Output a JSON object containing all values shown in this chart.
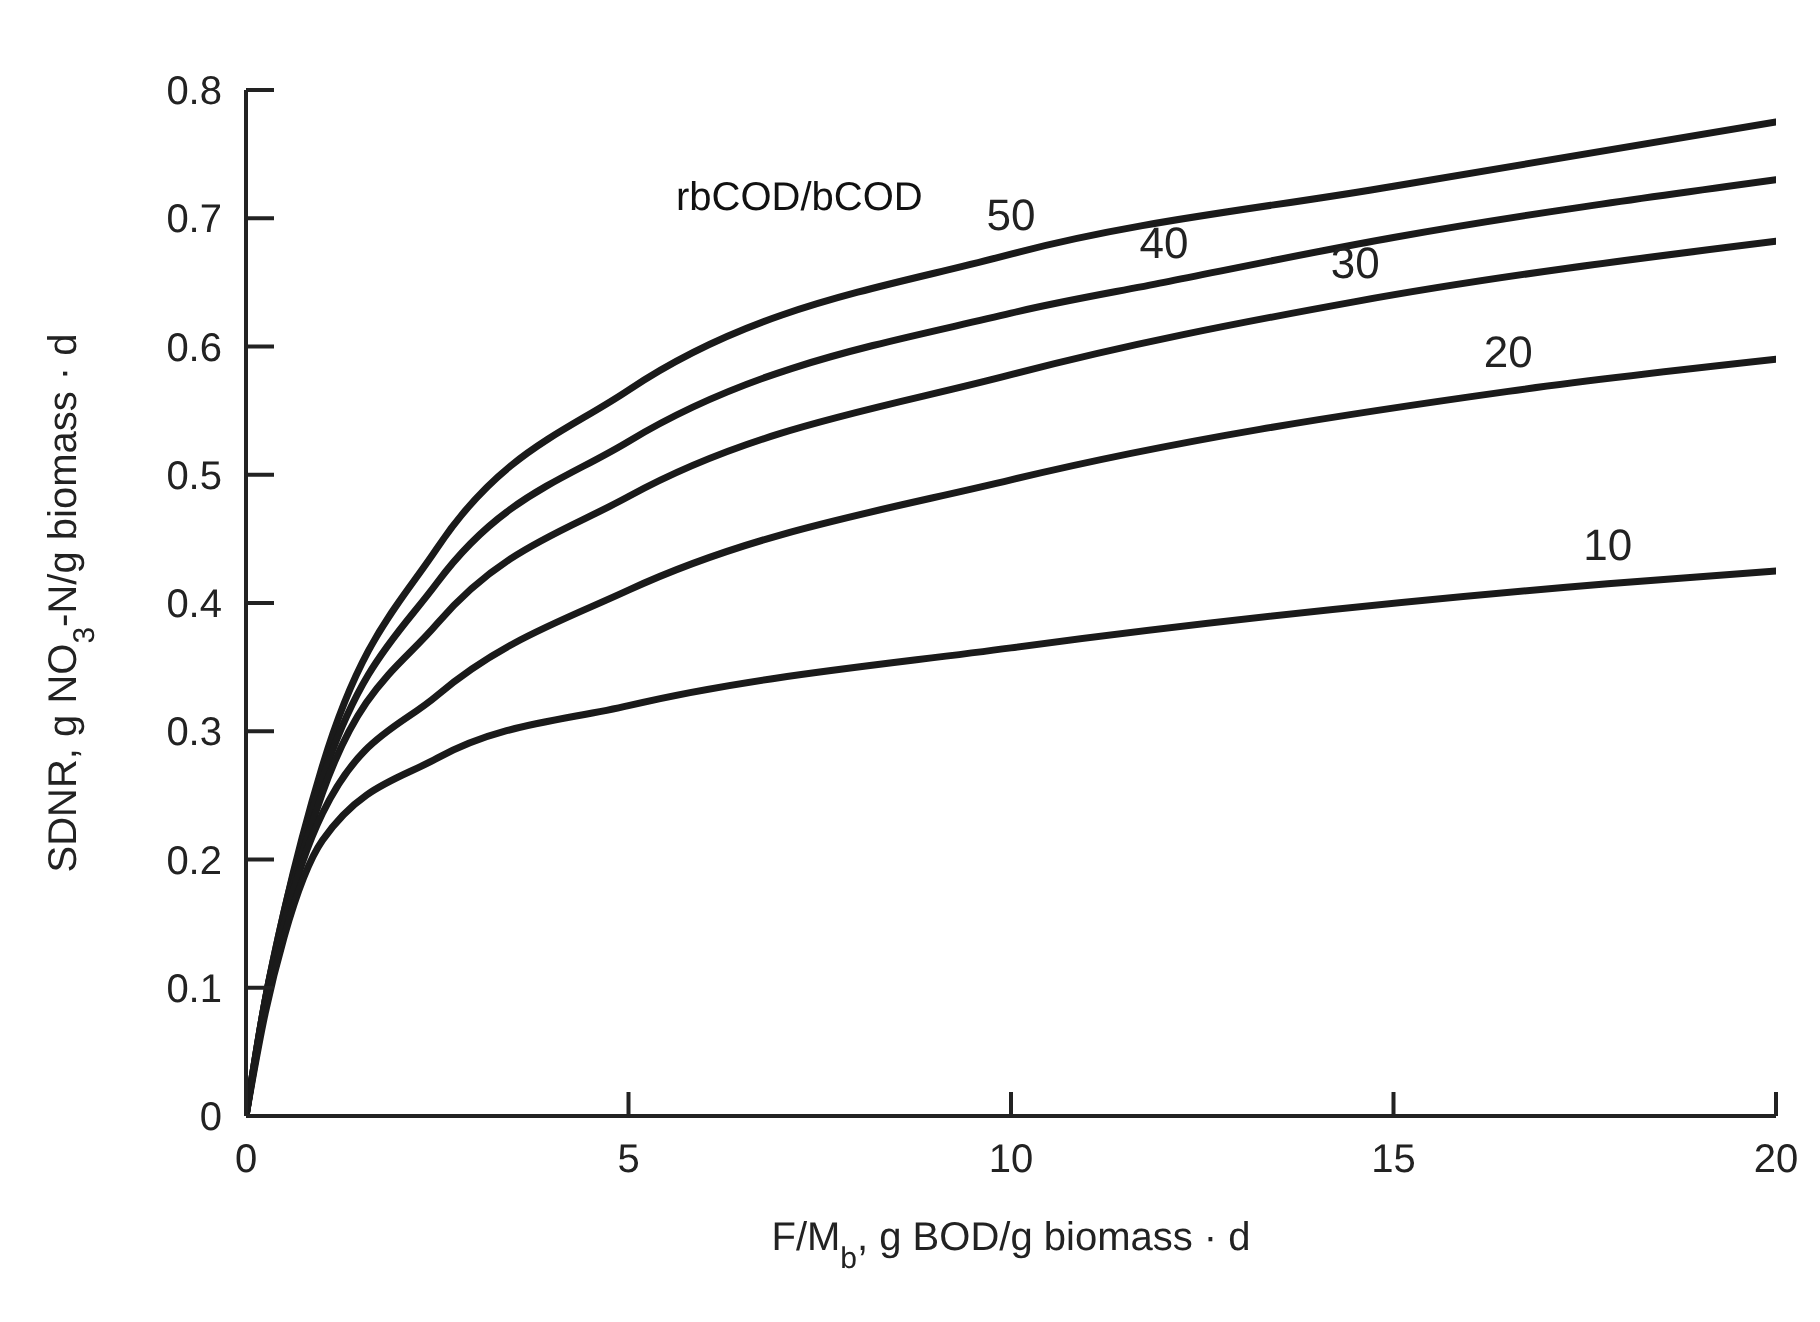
{
  "chart_data": {
    "type": "line",
    "xlabel": "F/M$_{b}$, g BOD/g biomass · d",
    "ylabel": "SDNR, g NO$_{3}$-N/g biomass · d",
    "annotations": [
      "rbCOD/bCOD"
    ],
    "xlim": [
      0,
      20
    ],
    "xticks": [
      0,
      5,
      10,
      15,
      20
    ],
    "ylim": [
      0,
      0.8
    ],
    "yticks": [
      0,
      0.1,
      0.2,
      0.3,
      0.4,
      0.5,
      0.6,
      0.7,
      0.8
    ],
    "grid": false,
    "legend": false,
    "marker": "none",
    "line_style": "solid",
    "series": [
      {
        "name": "50",
        "color": "#1a1a1a",
        "x": [
          0,
          0.25,
          0.5,
          1,
          2.5,
          5,
          10,
          15,
          20
        ],
        "values": [
          0,
          0.09,
          0.16,
          0.273,
          0.443,
          0.566,
          0.672,
          0.725,
          0.775
        ]
      },
      {
        "name": "40",
        "color": "#1a1a1a",
        "x": [
          0,
          0.25,
          0.5,
          1,
          2.5,
          5,
          10,
          12,
          15,
          20
        ],
        "values": [
          0,
          0.09,
          0.16,
          0.263,
          0.416,
          0.526,
          0.626,
          0.65,
          0.685,
          0.73
        ]
      },
      {
        "name": "30",
        "color": "#1a1a1a",
        "x": [
          0,
          0.25,
          0.5,
          1,
          2.5,
          5,
          10,
          14.5,
          20
        ],
        "values": [
          0,
          0.09,
          0.155,
          0.252,
          0.384,
          0.483,
          0.578,
          0.635,
          0.682
        ]
      },
      {
        "name": "20",
        "color": "#1a1a1a",
        "x": [
          0,
          0.25,
          0.5,
          1,
          2.5,
          5,
          10,
          16.5,
          20
        ],
        "values": [
          0,
          0.085,
          0.15,
          0.236,
          0.328,
          0.41,
          0.496,
          0.565,
          0.59
        ]
      },
      {
        "name": "10",
        "color": "#1a1a1a",
        "x": [
          0,
          0.25,
          0.5,
          1,
          2.5,
          5,
          10,
          17.8,
          20
        ],
        "values": [
          0,
          0.08,
          0.14,
          0.215,
          0.279,
          0.32,
          0.365,
          0.415,
          0.425
        ]
      }
    ]
  }
}
